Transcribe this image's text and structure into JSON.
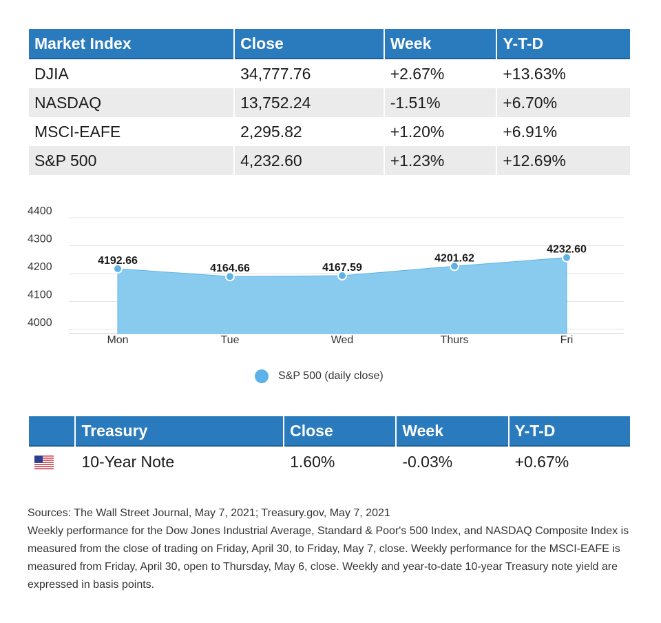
{
  "market_table": {
    "headers": [
      "Market Index",
      "Close",
      "Week",
      "Y-T-D"
    ],
    "rows": [
      [
        "DJIA",
        "34,777.76",
        "+2.67%",
        "+13.63%"
      ],
      [
        "NASDAQ",
        "13,752.24",
        "-1.51%",
        "+6.70%"
      ],
      [
        "MSCI-EAFE",
        "2,295.82",
        "+1.20%",
        "+6.91%"
      ],
      [
        "S&P 500",
        "4,232.60",
        "+1.23%",
        "+12.69%"
      ]
    ]
  },
  "chart_data": {
    "type": "area",
    "categories": [
      "Mon",
      "Tue",
      "Wed",
      "Thurs",
      "Fri"
    ],
    "series": [
      {
        "name": "S&P 500 (daily close)",
        "values": [
          4192.66,
          4164.66,
          4167.59,
          4201.62,
          4232.6
        ],
        "labels": [
          "4192.66",
          "4164.66",
          "4167.59",
          "4201.62",
          "4232.60"
        ]
      }
    ],
    "yticks": [
      "4400",
      "4300",
      "4200",
      "4100",
      "4000"
    ],
    "ylim": [
      3960,
      4400
    ],
    "grid": true,
    "legend_position": "bottom",
    "color": "#5db3e8"
  },
  "treasury_table": {
    "headers": [
      "",
      "Treasury",
      "Close",
      "Week",
      "Y-T-D"
    ],
    "rows": [
      {
        "flag_icon": "us-flag-icon",
        "cells": [
          "10-Year Note",
          "1.60%",
          "-0.03%",
          "+0.67%"
        ]
      }
    ]
  },
  "notes": {
    "sources": "Sources: The Wall Street Journal, May 7, 2021; Treasury.gov, May 7, 2021",
    "description": "Weekly performance for the Dow Jones Industrial Average, Standard & Poor's 500 Index, and NASDAQ Composite Index is measured from the close of trading on Friday, April 30, to Friday, May 7, close. Weekly performance for the MSCI-EAFE is measured from Friday, April 30, open to Thursday, May 6, close. Weekly and year-to-date 10-year Treasury note yield are expressed in basis points."
  }
}
